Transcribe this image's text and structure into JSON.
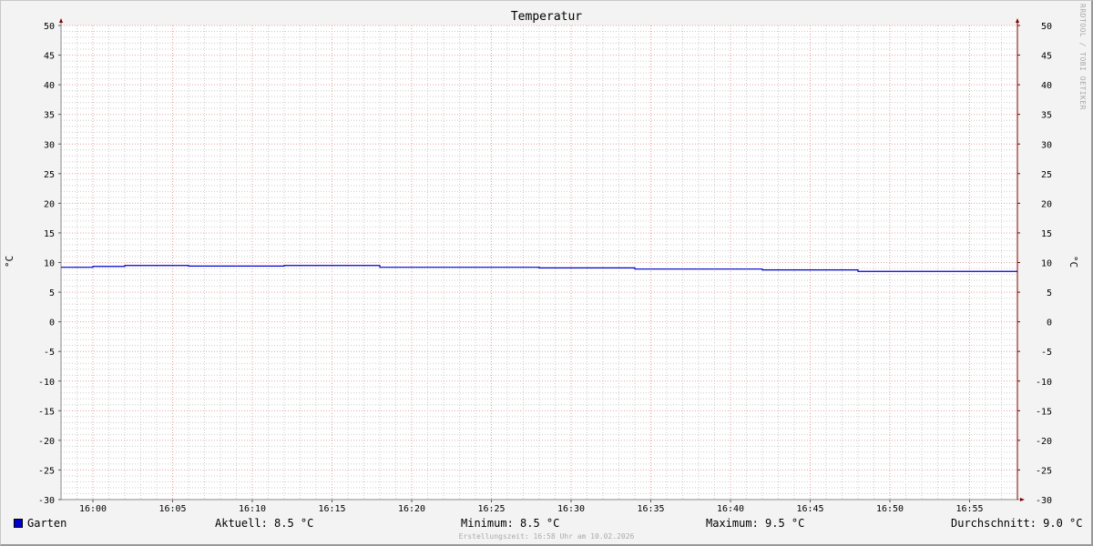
{
  "chart_data": {
    "type": "line",
    "title": "Temperatur",
    "ylabel": "°C",
    "ylim": [
      -30,
      50
    ],
    "yticks": [
      "50",
      "45",
      "40",
      "35",
      "30",
      "25",
      "20",
      "15",
      "10",
      "5",
      "0",
      "-5",
      "-10",
      "-15",
      "-20",
      "-25",
      "-30"
    ],
    "xlim": [
      "15:58",
      "16:58"
    ],
    "xticks": [
      "16:00",
      "16:05",
      "16:10",
      "16:15",
      "16:20",
      "16:25",
      "16:30",
      "16:35",
      "16:40",
      "16:45",
      "16:50",
      "16:55"
    ],
    "grid": true,
    "series": [
      {
        "name": "Garten",
        "color": "#0000cc",
        "step": true,
        "x": [
          "15:58",
          "16:00",
          "16:02",
          "16:06",
          "16:12",
          "16:18",
          "16:28",
          "16:34",
          "16:42",
          "16:48",
          "16:58"
        ],
        "values": [
          9.2,
          9.35,
          9.5,
          9.4,
          9.5,
          9.2,
          9.1,
          8.9,
          8.75,
          8.5,
          8.5
        ]
      }
    ],
    "legend_position": "bottom-left"
  },
  "legend": {
    "series_name": "Garten",
    "current": "Aktuell: 8.5 °C",
    "minimum": "Minimum: 8.5 °C",
    "maximum": "Maximum: 9.5 °C",
    "average": "Durchschnitt: 9.0 °C"
  },
  "footer": "Erstellungszeit: 16:58 Uhr am 10.02.2026",
  "watermark": "RRDTOOL / TOBI OETIKER",
  "colors": {
    "series": "#0000cc",
    "major_grid": "#e8a0a0",
    "minor_grid": "#cccccc",
    "axis_right": "#800000"
  }
}
